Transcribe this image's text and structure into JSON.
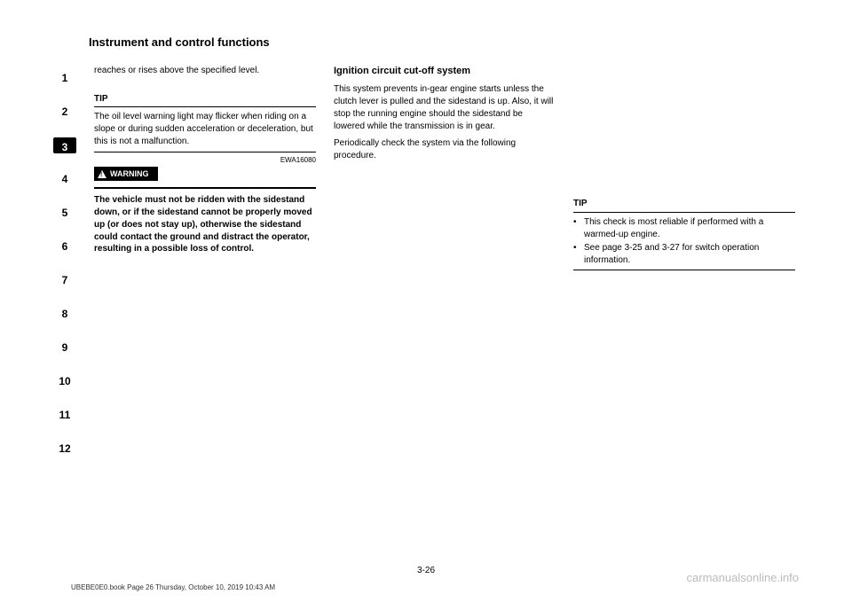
{
  "header": "Instrument and control functions",
  "sidebar": [
    "1",
    "2",
    "3",
    "4",
    "5",
    "6",
    "7",
    "8",
    "9",
    "10",
    "11",
    "12"
  ],
  "active_index": 2,
  "col1": {
    "p1": "reaches or rises above the specified level.",
    "tip_label": "TIP",
    "tip_text": "The oil level warning light may flicker when riding on a slope or during sudden acceleration or deceleration, but this is not a malfunction.",
    "code": "EWA16080",
    "warn_label": "WARNING",
    "warn_text": "The vehicle must not be ridden with the sidestand down, or if the sidestand cannot be properly moved up (or does not stay up), otherwise the sidestand could contact the ground and distract the operator, resulting in a possible loss of control."
  },
  "col2": {
    "title": "Ignition circuit cut-off system",
    "intro": "This system prevents in-gear engine starts unless the clutch lever is pulled and the sidestand is up. Also, it will stop the running engine should the sidestand be lowered while the transmission is in gear.",
    "check": "Periodically check the system via the following procedure."
  },
  "col3": {
    "tip_label": "TIP",
    "bullets": [
      "This check is most reliable if performed with a warmed-up engine.",
      "See page 3-25 and 3-27 for switch operation information."
    ]
  },
  "page_number": "3-26",
  "footer": "UBEBE0E0.book  Page 26  Thursday, October 10, 2019  10:43 AM",
  "watermark": "carmanualsonline.info"
}
